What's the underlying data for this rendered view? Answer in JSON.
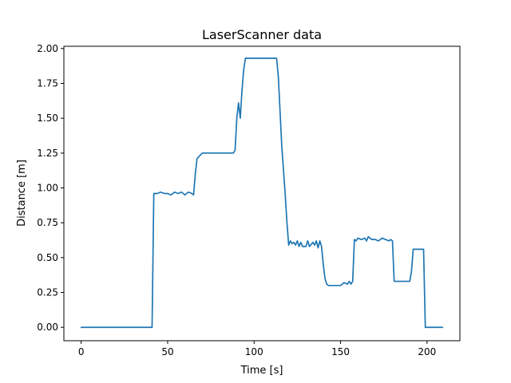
{
  "chart_data": {
    "type": "line",
    "title": "LaserScanner data",
    "xlabel": "Time [s]",
    "ylabel": "Distance [m]",
    "xlim": [
      -10,
      219
    ],
    "ylim": [
      -0.096,
      2.016
    ],
    "xticks": [
      0,
      50,
      100,
      150,
      200
    ],
    "xtick_labels": [
      "0",
      "50",
      "100",
      "150",
      "200"
    ],
    "yticks": [
      0.0,
      0.25,
      0.5,
      0.75,
      1.0,
      1.25,
      1.5,
      1.75,
      2.0
    ],
    "ytick_labels": [
      "0.00",
      "0.25",
      "0.50",
      "0.75",
      "1.00",
      "1.25",
      "1.50",
      "1.75",
      "2.00"
    ],
    "grid": false,
    "colors": {
      "line": "#1f77b4"
    },
    "series": [
      {
        "x": [
          0,
          41,
          42,
          44,
          46,
          48,
          50,
          52,
          54,
          56,
          58,
          60,
          62,
          64,
          65,
          66,
          67,
          70,
          75,
          80,
          85,
          88,
          89,
          90,
          91,
          92,
          93,
          94,
          95,
          100,
          105,
          110,
          113,
          114,
          115,
          116,
          118,
          119,
          120,
          121,
          122,
          123,
          124,
          125,
          126,
          127,
          128,
          129,
          130,
          131,
          132,
          134,
          135,
          136,
          137,
          138,
          139,
          140,
          141,
          142,
          143,
          145,
          150,
          152,
          154,
          155,
          156,
          157,
          158,
          159,
          160,
          162,
          164,
          165,
          166,
          168,
          170,
          172,
          174,
          176,
          178,
          179,
          180,
          181,
          185,
          189,
          190,
          191,
          192,
          193,
          195,
          198,
          199,
          200,
          205,
          209
        ],
        "y": [
          0.0,
          0.0,
          0.96,
          0.96,
          0.97,
          0.96,
          0.96,
          0.95,
          0.97,
          0.96,
          0.97,
          0.95,
          0.97,
          0.96,
          0.95,
          1.1,
          1.21,
          1.25,
          1.25,
          1.25,
          1.25,
          1.25,
          1.27,
          1.5,
          1.61,
          1.5,
          1.7,
          1.85,
          1.93,
          1.93,
          1.93,
          1.93,
          1.93,
          1.8,
          1.55,
          1.3,
          0.95,
          0.75,
          0.59,
          0.62,
          0.6,
          0.61,
          0.59,
          0.62,
          0.58,
          0.61,
          0.58,
          0.58,
          0.58,
          0.62,
          0.58,
          0.61,
          0.59,
          0.62,
          0.57,
          0.62,
          0.58,
          0.45,
          0.35,
          0.31,
          0.3,
          0.3,
          0.3,
          0.32,
          0.31,
          0.33,
          0.31,
          0.33,
          0.63,
          0.62,
          0.64,
          0.63,
          0.64,
          0.62,
          0.65,
          0.63,
          0.63,
          0.62,
          0.64,
          0.63,
          0.62,
          0.63,
          0.62,
          0.33,
          0.33,
          0.33,
          0.33,
          0.4,
          0.56,
          0.56,
          0.56,
          0.56,
          0.0,
          0.0,
          0.0,
          0.0
        ]
      }
    ]
  }
}
